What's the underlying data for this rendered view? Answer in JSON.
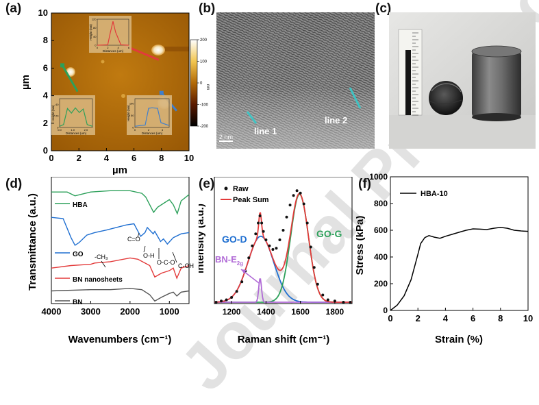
{
  "figure": {
    "watermark": "Journal Pre-proof",
    "colors": {
      "afm_low": "#1a0500",
      "afm_high": "#fff6d8",
      "hba": "#2ca05a",
      "go": "#1f6fd1",
      "bn_sheets": "#e33a3a",
      "bn": "#555555",
      "bn_e2g": "#b06ad6",
      "raw_dot": "#111111"
    }
  },
  "panels": {
    "a": {
      "letter": "(a)"
    },
    "b": {
      "letter": "(b)",
      "line1": "line 1",
      "line2": "line 2",
      "scale": "2 nm"
    },
    "c": {
      "letter": "(c)"
    },
    "d": {
      "letter": "(d)"
    },
    "e": {
      "letter": "(e)"
    },
    "f": {
      "letter": "(f)"
    }
  },
  "chart_data": [
    {
      "id": "a",
      "type": "heatmap",
      "xlabel": "µm",
      "ylabel": "µm",
      "xlim": [
        0,
        10
      ],
      "ylim": [
        0,
        10
      ],
      "xticks": [
        "0",
        "2",
        "4",
        "6",
        "8",
        "10"
      ],
      "yticks": [
        "0",
        "2",
        "4",
        "6",
        "8",
        "10"
      ],
      "colorbar": {
        "unit": "nm",
        "range": [
          -200,
          200
        ],
        "ticks": [
          "200",
          "100",
          "0",
          "-100",
          "-200"
        ]
      },
      "insets": [
        {
          "color": "#e23b3b",
          "xlabel": "Distances (um)",
          "ylabel": "Height (nm)",
          "xticks": [
            "0",
            "2",
            "4",
            "6"
          ],
          "yticks": [
            "0",
            "40",
            "80",
            "120"
          ],
          "xlim": [
            0,
            6
          ],
          "ylim": [
            0,
            120
          ],
          "x": [
            0,
            2.0,
            2.5,
            3.0,
            3.5,
            4.5,
            6
          ],
          "y": [
            0,
            2,
            60,
            110,
            60,
            2,
            0
          ]
        },
        {
          "color": "#2ca05a",
          "xlabel": "Distances (um)",
          "ylabel": "Height (nm)",
          "xticks": [
            "0.0",
            "1.0",
            "2.0"
          ],
          "yticks": [
            "0",
            "20",
            "40"
          ],
          "xlim": [
            0,
            2.5
          ],
          "ylim": [
            0,
            50
          ],
          "x": [
            0,
            0.3,
            0.6,
            0.9,
            1.2,
            1.5,
            1.8,
            2.1,
            2.5
          ],
          "y": [
            2,
            5,
            33,
            25,
            34,
            26,
            32,
            5,
            2
          ]
        },
        {
          "color": "#3f7fce",
          "xlabel": "Distances (um)",
          "ylabel": "Height (nm)",
          "xticks": [
            "0",
            "2",
            "4"
          ],
          "yticks": [
            "0",
            "50",
            "100"
          ],
          "xlim": [
            0,
            5
          ],
          "ylim": [
            0,
            120
          ],
          "x": [
            0,
            0.8,
            1.5,
            2.0,
            2.5,
            3.3,
            3.8,
            5
          ],
          "y": [
            5,
            8,
            10,
            80,
            82,
            80,
            20,
            8
          ]
        }
      ],
      "profile_lines": [
        {
          "color": "#e23b3b",
          "x": [
            5.4,
            7.8
          ],
          "y": [
            7.6,
            6.6
          ]
        },
        {
          "color": "#2ca05a",
          "x": [
            0.8,
            1.9
          ],
          "y": [
            6.2,
            4.3
          ]
        },
        {
          "color": "#3f7fce",
          "x": [
            8.0,
            9.1
          ],
          "y": [
            4.2,
            2.9
          ]
        }
      ]
    },
    {
      "id": "d",
      "type": "line",
      "xlabel": "Wavenumbers (cm⁻¹)",
      "ylabel": "Transmittance (a.u.)",
      "xlim": [
        4000,
        500
      ],
      "xticks": [
        "4000",
        "3000",
        "2000",
        "1000"
      ],
      "series": [
        {
          "name": "HBA",
          "x": [
            4000,
            3600,
            3400,
            3000,
            2500,
            2000,
            1700,
            1600,
            1400,
            1300,
            1100,
            1000,
            900,
            800,
            700,
            500
          ],
          "y": [
            88,
            88,
            85,
            88,
            89,
            89,
            87,
            84,
            72,
            76,
            80,
            82,
            78,
            71,
            81,
            86
          ]
        },
        {
          "name": "GO",
          "x": [
            4000,
            3700,
            3500,
            3400,
            3300,
            3100,
            2900,
            2600,
            2100,
            1900,
            1730,
            1620,
            1560,
            1410,
            1370,
            1225,
            1150,
            1050,
            900,
            700,
            500
          ],
          "y": [
            68,
            67,
            52,
            46,
            48,
            54,
            56,
            58,
            62,
            63,
            53,
            56,
            60,
            55,
            57,
            49,
            51,
            47,
            52,
            55,
            56
          ]
        },
        {
          "name": "BN nanosheets",
          "x": [
            4000,
            3500,
            3000,
            2900,
            2500,
            2000,
            1800,
            1500,
            1370,
            1200,
            1000,
            900,
            810,
            700,
            500
          ],
          "y": [
            28,
            30,
            31,
            32,
            33,
            36,
            35,
            30,
            21,
            24,
            26,
            28,
            20,
            28,
            30
          ]
        },
        {
          "name": "BN",
          "x": [
            4000,
            3000,
            2500,
            2000,
            1700,
            1500,
            1370,
            1200,
            1000,
            900,
            810,
            700,
            500
          ],
          "y": [
            10,
            11,
            11,
            12,
            11,
            7,
            2,
            5,
            8,
            9,
            6,
            9,
            10
          ]
        }
      ],
      "annotations": [
        "-CH₃",
        "C=O",
        "O-H",
        "O-C-O",
        "C-OH"
      ]
    },
    {
      "id": "e",
      "type": "line",
      "xlabel": "Raman shift  (cm⁻¹)",
      "ylabel": "Intensity (a.u.)",
      "xlim": [
        1100,
        1900
      ],
      "xticks": [
        "1200",
        "1400",
        "1600",
        "1800"
      ],
      "legend": [
        "Raw",
        "Peak Sum"
      ],
      "labels": [
        "GO-D",
        "GO-G",
        "BN-E",
        "2g"
      ],
      "peaks": [
        {
          "name": "GO-D",
          "center": 1370,
          "width": 75,
          "height": 0.55
        },
        {
          "name": "GO-G",
          "center": 1595,
          "width": 52,
          "height": 0.9
        },
        {
          "name": "BN-E2g",
          "center": 1366,
          "width": 8,
          "height": 0.2
        }
      ],
      "raw": {
        "x": [
          1110,
          1140,
          1170,
          1200,
          1230,
          1260,
          1280,
          1300,
          1320,
          1340,
          1355,
          1365,
          1375,
          1385,
          1400,
          1420,
          1440,
          1460,
          1480,
          1500,
          1520,
          1540,
          1560,
          1580,
          1600,
          1620,
          1640,
          1660,
          1680,
          1700,
          1730,
          1760,
          1800,
          1850,
          1890
        ],
        "y": [
          0.0,
          0.01,
          0.02,
          0.04,
          0.09,
          0.17,
          0.26,
          0.37,
          0.47,
          0.57,
          0.66,
          0.72,
          0.66,
          0.59,
          0.52,
          0.47,
          0.44,
          0.45,
          0.52,
          0.6,
          0.71,
          0.81,
          0.89,
          0.93,
          0.91,
          0.82,
          0.66,
          0.46,
          0.29,
          0.15,
          0.06,
          0.02,
          0.01,
          0.0,
          0.0
        ]
      }
    },
    {
      "id": "f",
      "type": "line",
      "xlabel": "Strain (%)",
      "ylabel": "Stress (kPa)",
      "xlim": [
        0,
        10
      ],
      "ylim": [
        0,
        1000
      ],
      "xticks": [
        "0",
        "2",
        "4",
        "6",
        "8",
        "10"
      ],
      "yticks": [
        "0",
        "200",
        "400",
        "600",
        "800",
        "1000"
      ],
      "series": [
        {
          "name": "HBA-10",
          "x": [
            0,
            0.5,
            1.0,
            1.5,
            2.0,
            2.2,
            2.5,
            2.8,
            3.2,
            3.6,
            4.0,
            4.5,
            5.0,
            5.5,
            6.0,
            6.5,
            7.0,
            7.5,
            8.0,
            8.5,
            9.0,
            9.5,
            10.0
          ],
          "y": [
            0,
            40,
            110,
            230,
            420,
            500,
            545,
            560,
            548,
            540,
            555,
            570,
            585,
            600,
            610,
            608,
            605,
            615,
            622,
            615,
            600,
            595,
            592
          ]
        }
      ]
    }
  ]
}
